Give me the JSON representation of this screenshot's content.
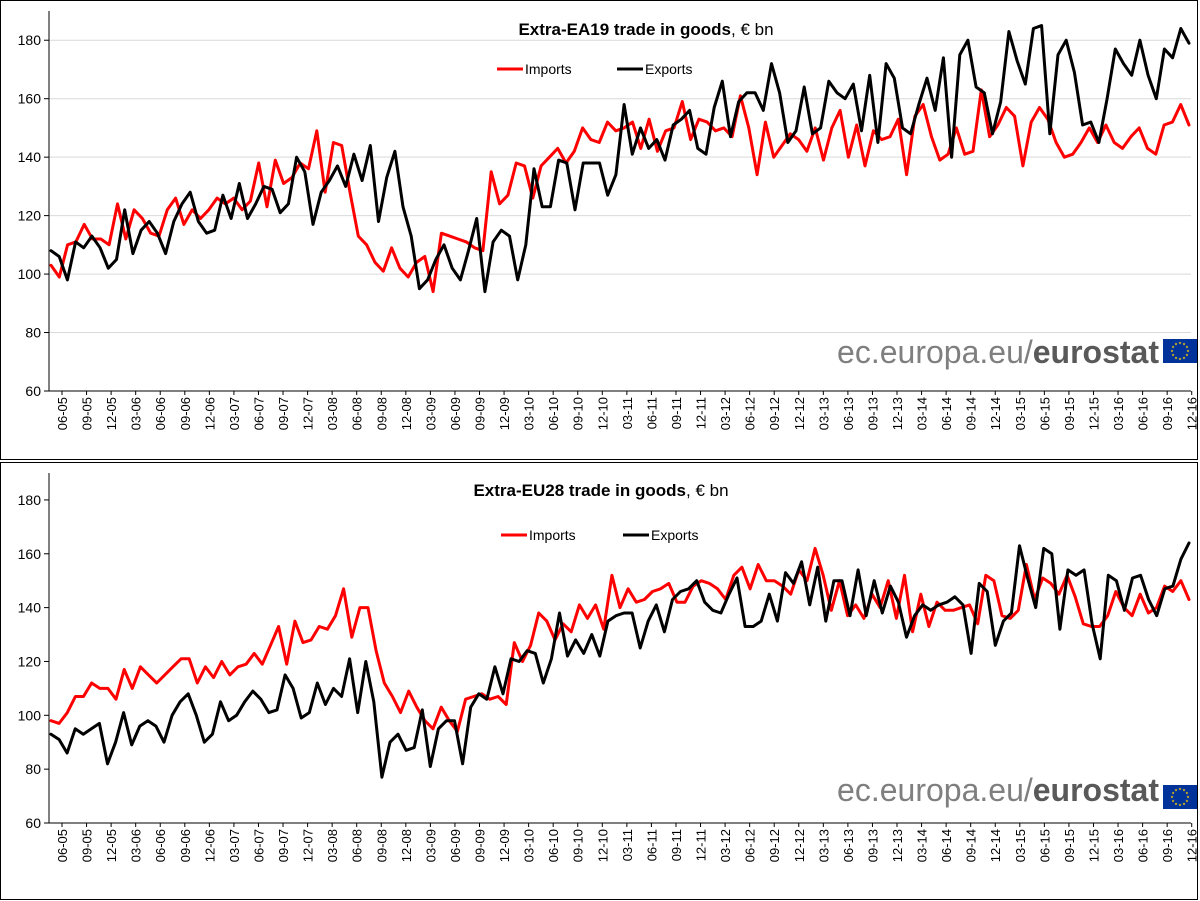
{
  "chart_data": [
    {
      "type": "line",
      "title_bold": "Extra-EA19 trade in goods",
      "title_rest": ", € bn",
      "ylim": [
        60,
        190
      ],
      "yticks": [
        60,
        80,
        100,
        120,
        140,
        160,
        180
      ],
      "x_tick_labels": [
        "06-05",
        "09-05",
        "12-05",
        "03-06",
        "06-06",
        "09-06",
        "12-06",
        "03-07",
        "06-07",
        "09-07",
        "12-07",
        "03-08",
        "06-08",
        "09-08",
        "12-08",
        "03-09",
        "06-09",
        "09-09",
        "12-09",
        "03-10",
        "06-10",
        "09-10",
        "12-10",
        "03-11",
        "06-11",
        "09-11",
        "12-11",
        "03-12",
        "06-12",
        "09-12",
        "12-12",
        "03-13",
        "06-13",
        "09-13",
        "12-13",
        "03-14",
        "06-14",
        "09-14",
        "12-14",
        "03-15",
        "06-15",
        "09-15",
        "12-15",
        "03-16",
        "06-16",
        "09-16",
        "12-16"
      ],
      "legend": [
        "Imports",
        "Exports"
      ],
      "grid": true,
      "series": [
        {
          "name": "Imports",
          "color": "#ff0000",
          "values": [
            103,
            99,
            110,
            111,
            117,
            112,
            112,
            110,
            124,
            112,
            122,
            119,
            114,
            113,
            122,
            126,
            117,
            122,
            119,
            122,
            126,
            124,
            126,
            122,
            125,
            138,
            123,
            139,
            131,
            133,
            138,
            136,
            149,
            128,
            145,
            144,
            128,
            113,
            110,
            104,
            101,
            109,
            102,
            99,
            104,
            106,
            94,
            114,
            113,
            112,
            111,
            109,
            108,
            135,
            124,
            127,
            138,
            137,
            126,
            137,
            140,
            143,
            138,
            142,
            150,
            146,
            145,
            152,
            149,
            150,
            152,
            143,
            153,
            142,
            149,
            150,
            159,
            146,
            153,
            152,
            149,
            150,
            147,
            161,
            150,
            134,
            152,
            140,
            144,
            148,
            146,
            142,
            150,
            139,
            150,
            156,
            140,
            151,
            137,
            149,
            146,
            147,
            153,
            134,
            154,
            158,
            147,
            139,
            141,
            150,
            141,
            142,
            163,
            147,
            151,
            157,
            154,
            137,
            152,
            157,
            153,
            145,
            140,
            141,
            145,
            150,
            145,
            151,
            145,
            143,
            147,
            150,
            143,
            141,
            151,
            152,
            158,
            151
          ]
        },
        {
          "name": "Exports",
          "color": "#000000",
          "values": [
            108,
            106,
            98,
            111,
            109,
            113,
            109,
            102,
            105,
            122,
            107,
            115,
            118,
            114,
            107,
            118,
            124,
            128,
            118,
            114,
            115,
            127,
            119,
            131,
            119,
            124,
            130,
            129,
            121,
            124,
            140,
            135,
            117,
            128,
            132,
            137,
            130,
            141,
            132,
            144,
            118,
            133,
            142,
            123,
            113,
            95,
            98,
            105,
            110,
            102,
            98,
            108,
            119,
            94,
            111,
            115,
            113,
            98,
            110,
            136,
            123,
            123,
            139,
            138,
            122,
            138,
            138,
            138,
            127,
            134,
            158,
            141,
            150,
            143,
            146,
            139,
            151,
            153,
            156,
            143,
            141,
            157,
            166,
            147,
            159,
            162,
            162,
            156,
            172,
            162,
            145,
            149,
            164,
            148,
            150,
            166,
            162,
            160,
            165,
            149,
            168,
            145,
            172,
            167,
            150,
            148,
            158,
            167,
            156,
            174,
            140,
            175,
            180,
            164,
            162,
            148,
            159,
            183,
            173,
            165,
            184,
            185,
            148,
            175,
            180,
            169,
            151,
            152,
            145,
            160,
            177,
            172,
            168,
            180,
            168,
            160,
            177,
            174,
            184,
            179
          ]
        }
      ]
    },
    {
      "type": "line",
      "title_bold": "Extra-EU28 trade in goods",
      "title_rest": ", € bn",
      "ylim": [
        60,
        190
      ],
      "yticks": [
        60,
        80,
        100,
        120,
        140,
        160,
        180
      ],
      "x_tick_labels": [
        "06-05",
        "09-05",
        "12-05",
        "03-06",
        "06-06",
        "09-06",
        "12-06",
        "03-07",
        "06-07",
        "09-07",
        "12-07",
        "03-08",
        "06-08",
        "09-08",
        "12-08",
        "03-09",
        "06-09",
        "09-09",
        "12-09",
        "03-10",
        "06-10",
        "09-10",
        "12-10",
        "03-11",
        "06-11",
        "09-11",
        "12-11",
        "03-12",
        "06-12",
        "09-12",
        "12-12",
        "03-13",
        "06-13",
        "09-13",
        "12-13",
        "03-14",
        "06-14",
        "09-14",
        "12-14",
        "03-15",
        "06-15",
        "09-15",
        "12-15",
        "03-16",
        "06-16",
        "09-16",
        "12-16"
      ],
      "legend": [
        "Imports",
        "Exports"
      ],
      "grid": false,
      "series": [
        {
          "name": "Imports",
          "color": "#ff0000",
          "values": [
            98,
            97,
            101,
            107,
            107,
            112,
            110,
            110,
            106,
            117,
            110,
            118,
            115,
            112,
            115,
            118,
            121,
            121,
            112,
            118,
            114,
            120,
            115,
            118,
            119,
            123,
            119,
            126,
            133,
            119,
            135,
            127,
            128,
            133,
            132,
            137,
            147,
            129,
            140,
            140,
            124,
            112,
            107,
            101,
            109,
            103,
            98,
            95,
            103,
            98,
            94,
            106,
            107,
            108,
            106,
            107,
            104,
            127,
            120,
            126,
            138,
            135,
            128,
            134,
            131,
            141,
            136,
            141,
            132,
            152,
            140,
            147,
            142,
            143,
            146,
            147,
            149,
            142,
            142,
            148,
            150,
            149,
            147,
            143,
            152,
            155,
            147,
            156,
            150,
            150,
            148,
            145,
            154,
            150,
            162,
            152,
            139,
            150,
            137,
            141,
            136,
            145,
            140,
            150,
            136,
            152,
            131,
            145,
            133,
            142,
            139,
            139,
            140,
            141,
            134,
            152,
            150,
            137,
            136,
            139,
            156,
            143,
            151,
            149,
            145,
            152,
            144,
            134,
            133,
            133,
            137,
            146,
            140,
            137,
            145,
            138,
            140,
            148,
            146,
            150,
            143
          ]
        },
        {
          "name": "Exports",
          "color": "#000000",
          "values": [
            93,
            91,
            86,
            95,
            93,
            95,
            97,
            82,
            90,
            101,
            89,
            96,
            98,
            96,
            90,
            100,
            105,
            108,
            100,
            90,
            93,
            105,
            98,
            100,
            105,
            109,
            106,
            101,
            102,
            115,
            110,
            99,
            101,
            112,
            104,
            110,
            107,
            121,
            101,
            120,
            105,
            77,
            90,
            93,
            87,
            88,
            102,
            81,
            95,
            98,
            98,
            82,
            103,
            108,
            106,
            118,
            108,
            121,
            120,
            124,
            123,
            112,
            121,
            138,
            122,
            128,
            123,
            130,
            122,
            135,
            137,
            138,
            138,
            125,
            135,
            141,
            131,
            143,
            146,
            147,
            150,
            142,
            139,
            138,
            145,
            151,
            133,
            133,
            135,
            145,
            135,
            153,
            149,
            157,
            141,
            155,
            135,
            150,
            150,
            137,
            154,
            137,
            150,
            138,
            148,
            142,
            129,
            137,
            141,
            139,
            141,
            142,
            144,
            141,
            123,
            149,
            146,
            126,
            135,
            138,
            163,
            151,
            140,
            162,
            160,
            132,
            154,
            152,
            154,
            134,
            121,
            152,
            150,
            139,
            151,
            152,
            143,
            137,
            147,
            148,
            158,
            164
          ]
        }
      ]
    }
  ],
  "watermark": {
    "site": "ec.europa.eu/",
    "brand": "eurostat",
    "flag_color": "#003399",
    "star_color": "#ffcc00"
  }
}
